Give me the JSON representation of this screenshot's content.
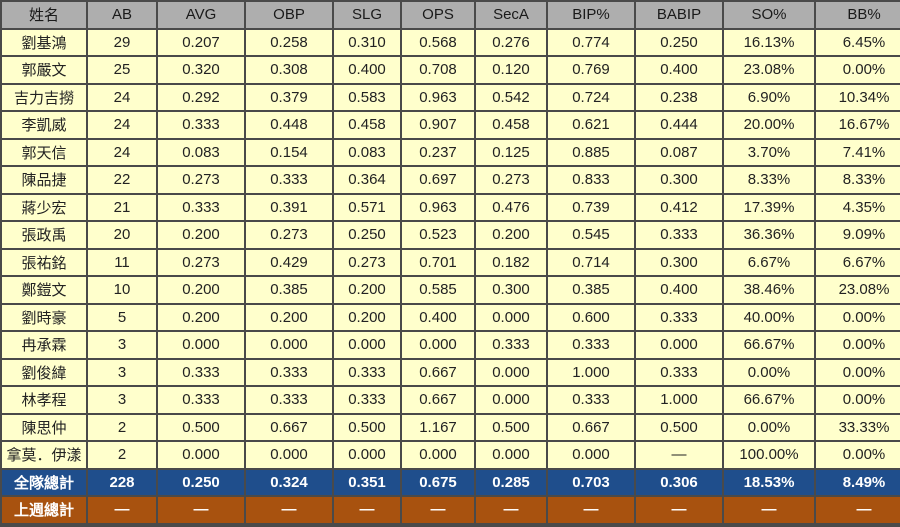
{
  "headers": [
    "姓名",
    "AB",
    "AVG",
    "OBP",
    "SLG",
    "OPS",
    "SecA",
    "BIP%",
    "BABIP",
    "SO%",
    "BB%"
  ],
  "rows": [
    [
      "劉基鴻",
      "29",
      "0.207",
      "0.258",
      "0.310",
      "0.568",
      "0.276",
      "0.774",
      "0.250",
      "16.13%",
      "6.45%"
    ],
    [
      "郭嚴文",
      "25",
      "0.320",
      "0.308",
      "0.400",
      "0.708",
      "0.120",
      "0.769",
      "0.400",
      "23.08%",
      "0.00%"
    ],
    [
      "吉力吉撈",
      "24",
      "0.292",
      "0.379",
      "0.583",
      "0.963",
      "0.542",
      "0.724",
      "0.238",
      "6.90%",
      "10.34%"
    ],
    [
      "李凱威",
      "24",
      "0.333",
      "0.448",
      "0.458",
      "0.907",
      "0.458",
      "0.621",
      "0.444",
      "20.00%",
      "16.67%"
    ],
    [
      "郭天信",
      "24",
      "0.083",
      "0.154",
      "0.083",
      "0.237",
      "0.125",
      "0.885",
      "0.087",
      "3.70%",
      "7.41%"
    ],
    [
      "陳品捷",
      "22",
      "0.273",
      "0.333",
      "0.364",
      "0.697",
      "0.273",
      "0.833",
      "0.300",
      "8.33%",
      "8.33%"
    ],
    [
      "蔣少宏",
      "21",
      "0.333",
      "0.391",
      "0.571",
      "0.963",
      "0.476",
      "0.739",
      "0.412",
      "17.39%",
      "4.35%"
    ],
    [
      "張政禹",
      "20",
      "0.200",
      "0.273",
      "0.250",
      "0.523",
      "0.200",
      "0.545",
      "0.333",
      "36.36%",
      "9.09%"
    ],
    [
      "張祐銘",
      "11",
      "0.273",
      "0.429",
      "0.273",
      "0.701",
      "0.182",
      "0.714",
      "0.300",
      "6.67%",
      "6.67%"
    ],
    [
      "鄭鎧文",
      "10",
      "0.200",
      "0.385",
      "0.200",
      "0.585",
      "0.300",
      "0.385",
      "0.400",
      "38.46%",
      "23.08%"
    ],
    [
      "劉時豪",
      "5",
      "0.200",
      "0.200",
      "0.200",
      "0.400",
      "0.000",
      "0.600",
      "0.333",
      "40.00%",
      "0.00%"
    ],
    [
      "冉承霖",
      "3",
      "0.000",
      "0.000",
      "0.000",
      "0.000",
      "0.333",
      "0.333",
      "0.000",
      "66.67%",
      "0.00%"
    ],
    [
      "劉俊緯",
      "3",
      "0.333",
      "0.333",
      "0.333",
      "0.667",
      "0.000",
      "1.000",
      "0.333",
      "0.00%",
      "0.00%"
    ],
    [
      "林孝程",
      "3",
      "0.333",
      "0.333",
      "0.333",
      "0.667",
      "0.000",
      "0.333",
      "1.000",
      "66.67%",
      "0.00%"
    ],
    [
      "陳思仲",
      "2",
      "0.500",
      "0.667",
      "0.500",
      "1.167",
      "0.500",
      "0.667",
      "0.500",
      "0.00%",
      "33.33%"
    ],
    [
      "拿莫．伊漾",
      "2",
      "0.000",
      "0.000",
      "0.000",
      "0.000",
      "0.000",
      "0.000",
      "—",
      "100.00%",
      "0.00%"
    ]
  ],
  "team_total": [
    "全隊總計",
    "228",
    "0.250",
    "0.324",
    "0.351",
    "0.675",
    "0.285",
    "0.703",
    "0.306",
    "18.53%",
    "8.49%"
  ],
  "last_week_total": [
    "上週總計",
    "—",
    "—",
    "—",
    "—",
    "—",
    "—",
    "—",
    "—",
    "—",
    "—"
  ],
  "colors": {
    "header_bg": "#aeaeae",
    "row_bg": "#ffffcc",
    "team_total_bg": "#1f4e8c",
    "last_week_bg": "#a8520f",
    "grid_bg": "#4a4a4a"
  }
}
